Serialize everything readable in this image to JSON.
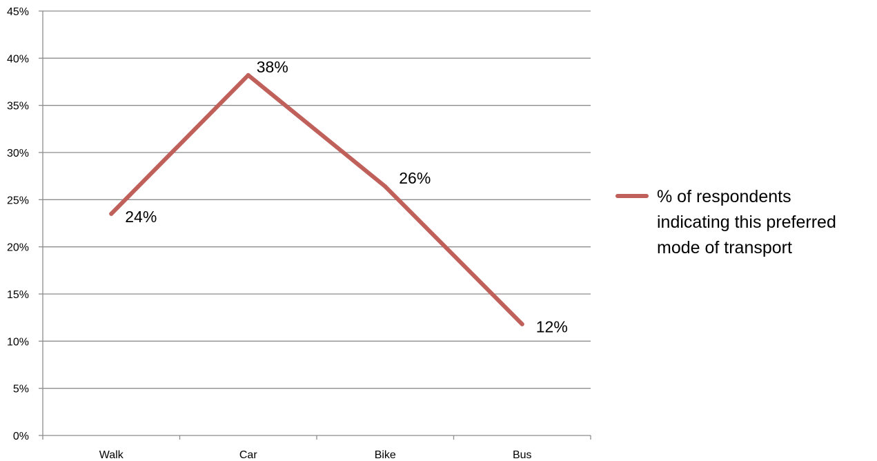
{
  "chart_data": {
    "type": "line",
    "title": "",
    "xlabel": "",
    "ylabel": "",
    "categories": [
      "Walk",
      "Car",
      "Bike",
      "Bus"
    ],
    "series": [
      {
        "name": "% of respondents indicating this preferred mode of transport",
        "values": [
          23.5,
          38.2,
          26.4,
          11.8
        ],
        "data_labels": [
          "24%",
          "38%",
          "26%",
          "12%"
        ],
        "color": "#c0605a"
      }
    ],
    "ylim": [
      0,
      45
    ],
    "y_ticks": [
      0,
      5,
      10,
      15,
      20,
      25,
      30,
      35,
      40,
      45
    ],
    "y_tick_format": "%",
    "grid": true,
    "legend_position": "right",
    "legend_lines": [
      "% of respondents",
      "indicating this preferred",
      "mode of transport"
    ]
  }
}
